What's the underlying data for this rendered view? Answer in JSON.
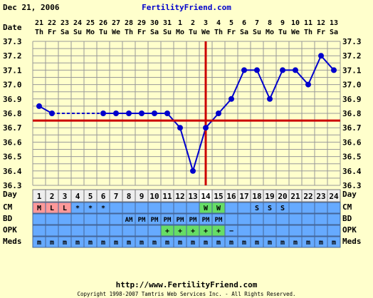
{
  "header": {
    "date": "Dec 21, 2006",
    "site": "FertilityFriend.com"
  },
  "footer": {
    "url": "http://www.FertilityFriend.com",
    "copyright": "Copyright 1998-2007 Tamtris Web Services Inc. - All Rights Reserved."
  },
  "labels": {
    "date": "Date",
    "day": "Day",
    "cm": "CM",
    "bd": "BD",
    "opk": "OPK",
    "meds": "Meds"
  },
  "colors": {
    "background": "#ffffcc",
    "grid": "#999999",
    "line": "#0000cc",
    "coverline": "#cc0000",
    "rowBlue": "#66aaff",
    "cmRed": "#ff9999",
    "cmGreen": "#66dd66",
    "opkGreen": "#66dd66"
  },
  "days": [
    "1",
    "2",
    "3",
    "4",
    "5",
    "6",
    "7",
    "8",
    "9",
    "10",
    "11",
    "12",
    "13",
    "14",
    "15",
    "16",
    "17",
    "18",
    "19",
    "20",
    "21",
    "22",
    "23",
    "24"
  ],
  "dates": [
    "21",
    "22",
    "23",
    "24",
    "25",
    "26",
    "27",
    "28",
    "29",
    "30",
    "31",
    "1",
    "2",
    "3",
    "4",
    "5",
    "6",
    "7",
    "8",
    "9",
    "10",
    "11",
    "12",
    "13"
  ],
  "weekdays": [
    "Th",
    "Fr",
    "Sa",
    "Su",
    "Mo",
    "Tu",
    "We",
    "Th",
    "Fr",
    "Sa",
    "Su",
    "Mo",
    "Tu",
    "We",
    "Th",
    "Fr",
    "Sa",
    "Su",
    "Mo",
    "Tu",
    "We",
    "Th",
    "Fr",
    "Sa"
  ],
  "cm": [
    "M",
    "L",
    "L",
    "*",
    "*",
    "*",
    "",
    "",
    "",
    "",
    "",
    "",
    "",
    "W",
    "W",
    "",
    "",
    "S",
    "S",
    "S",
    "",
    "",
    "",
    ""
  ],
  "cm_colors": [
    "red",
    "red",
    "red",
    "",
    "",
    "",
    "",
    "",
    "",
    "",
    "",
    "",
    "",
    "green",
    "green",
    "",
    "",
    "",
    "",
    "",
    "",
    "",
    "",
    ""
  ],
  "bd": [
    "",
    "",
    "",
    "",
    "",
    "",
    "",
    "AM",
    "PM",
    "PM",
    "PM",
    "PM",
    "PM",
    "PM",
    "PM",
    "",
    "",
    "",
    "",
    "",
    "",
    "",
    "",
    ""
  ],
  "opk": [
    "",
    "",
    "",
    "",
    "",
    "",
    "",
    "",
    "",
    "",
    "+",
    "+",
    "+",
    "+",
    "+",
    "−",
    "",
    "",
    "",
    "",
    "",
    "",
    "",
    ""
  ],
  "opk_colors": [
    "",
    "",
    "",
    "",
    "",
    "",
    "",
    "",
    "",
    "",
    "green",
    "green",
    "green",
    "green",
    "green",
    "",
    "",
    "",
    "",
    "",
    "",
    "",
    "",
    ""
  ],
  "meds": [
    "m",
    "m",
    "m",
    "m",
    "m",
    "m",
    "m",
    "m",
    "m",
    "m",
    "m",
    "m",
    "m",
    "m",
    "m",
    "m",
    "m",
    "m",
    "m",
    "m",
    "m",
    "m",
    "m",
    "m"
  ],
  "chart_data": {
    "type": "line",
    "x": [
      "1",
      "2",
      "3",
      "4",
      "5",
      "6",
      "7",
      "8",
      "9",
      "10",
      "11",
      "12",
      "13",
      "14",
      "15",
      "16",
      "17",
      "18",
      "19",
      "20",
      "21",
      "22",
      "23",
      "24"
    ],
    "series": [
      {
        "values": [
          36.85,
          36.8,
          null,
          null,
          null,
          36.8,
          36.8,
          36.8,
          36.8,
          36.8,
          36.8,
          36.7,
          36.4,
          36.7,
          36.8,
          36.9,
          37.1,
          37.1,
          36.9,
          37.1,
          37.1,
          37.0,
          37.2,
          37.1
        ]
      }
    ],
    "dashed_gap": {
      "from": 2,
      "to": 6
    },
    "coverline": 36.75,
    "ovulation_day": 14,
    "ylim": [
      36.3,
      37.3
    ],
    "yticks": [
      "37.3",
      "37.2",
      "37.1",
      "37.0",
      "36.9",
      "36.8",
      "36.7",
      "36.6",
      "36.5",
      "36.4",
      "36.3"
    ],
    "grid": true
  }
}
